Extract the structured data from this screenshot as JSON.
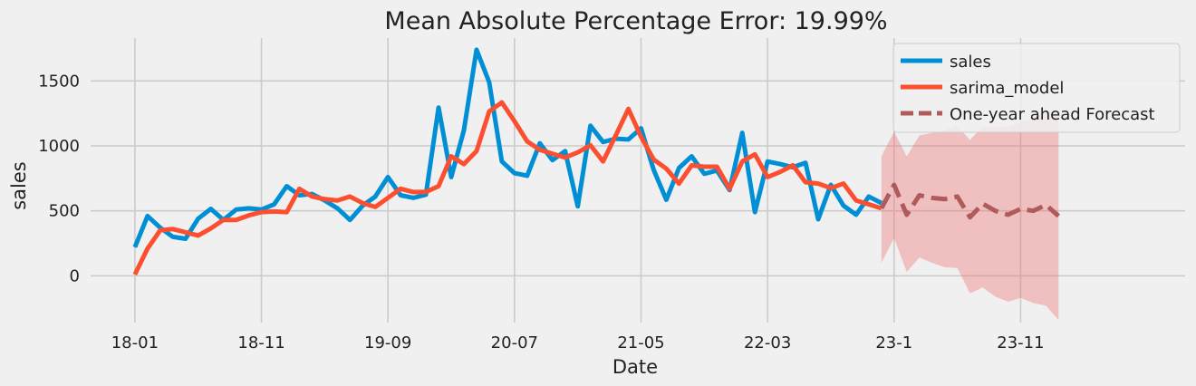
{
  "chart_data": {
    "type": "line",
    "title": "Mean Absolute Percentage Error: 19.99%",
    "xlabel": "Date",
    "ylabel": "sales",
    "xlim": [
      -3.5,
      83
    ],
    "ylim": [
      -360,
      1830
    ],
    "x_ticks": [
      {
        "pos": 0,
        "label": "18-01"
      },
      {
        "pos": 10,
        "label": "18-11"
      },
      {
        "pos": 20,
        "label": "19-09"
      },
      {
        "pos": 30,
        "label": "20-07"
      },
      {
        "pos": 40,
        "label": "21-05"
      },
      {
        "pos": 50,
        "label": "22-03"
      },
      {
        "pos": 60,
        "label": "23-1"
      },
      {
        "pos": 70,
        "label": "23-11"
      }
    ],
    "y_ticks": [
      0,
      500,
      1000,
      1500
    ],
    "grid": true,
    "legend": "top-right",
    "series": [
      {
        "name": "sales",
        "color": "#008fd5",
        "style": "solid",
        "start": 0,
        "values": [
          220,
          460,
          370,
          300,
          285,
          440,
          515,
          430,
          510,
          520,
          510,
          550,
          690,
          620,
          630,
          580,
          520,
          430,
          540,
          610,
          760,
          620,
          600,
          625,
          1295,
          760,
          1120,
          1740,
          1490,
          880,
          790,
          770,
          1020,
          890,
          960,
          535,
          1155,
          1030,
          1055,
          1050,
          1135,
          815,
          585,
          830,
          920,
          785,
          810,
          660,
          1100,
          490,
          880,
          860,
          835,
          870,
          435,
          700,
          540,
          470,
          610,
          560
        ]
      },
      {
        "name": "sarima_model",
        "color": "#fc4f30",
        "style": "solid",
        "start": 0,
        "values": [
          10,
          210,
          350,
          360,
          335,
          310,
          365,
          430,
          430,
          465,
          490,
          495,
          490,
          670,
          610,
          590,
          580,
          610,
          560,
          530,
          600,
          670,
          645,
          645,
          690,
          920,
          860,
          960,
          1265,
          1335,
          1190,
          1035,
          970,
          940,
          910,
          950,
          1005,
          880,
          1080,
          1285,
          1070,
          895,
          825,
          710,
          850,
          840,
          840,
          670,
          880,
          935,
          760,
          800,
          850,
          720,
          710,
          675,
          710,
          580,
          550,
          520
        ]
      },
      {
        "name": "One-year ahead Forecast",
        "color": "#b05b5b",
        "style": "dashed",
        "start": 59,
        "values": [
          520,
          700,
          470,
          620,
          600,
          590,
          610,
          450,
          555,
          500,
          470,
          515,
          500,
          545,
          460
        ],
        "ci_lower": [
          100,
          290,
          30,
          140,
          100,
          65,
          60,
          -135,
          -90,
          -160,
          -200,
          -170,
          -210,
          -230,
          -340
        ],
        "ci_upper": [
          920,
          1110,
          920,
          1080,
          1100,
          1120,
          1155,
          1045,
          1150,
          1145,
          1150,
          1185,
          1200,
          1260,
          1260
        ]
      }
    ]
  }
}
